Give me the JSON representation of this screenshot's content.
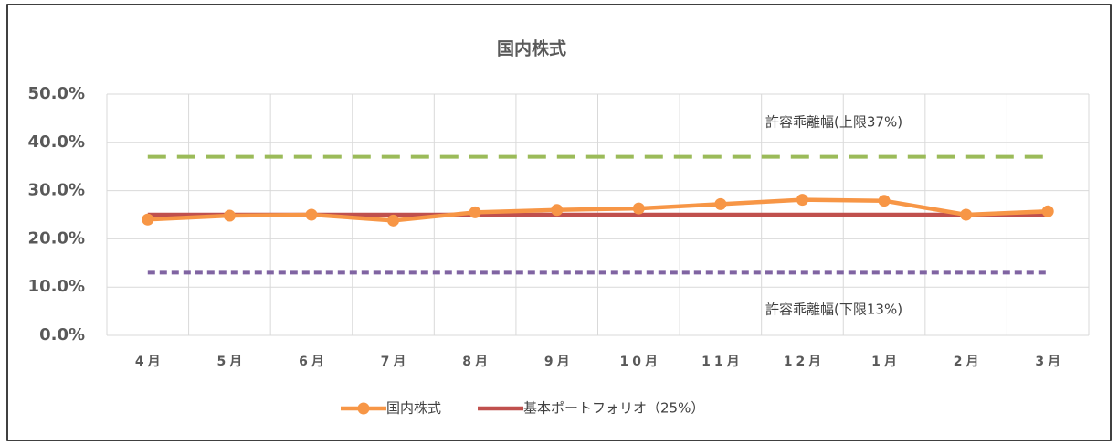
{
  "chart_data": {
    "type": "line",
    "title": "国内株式",
    "categories": [
      "4月",
      "5月",
      "6月",
      "7月",
      "8月",
      "9月",
      "10月",
      "11月",
      "12月",
      "1月",
      "2月",
      "3月"
    ],
    "series": [
      {
        "name": "国内株式",
        "color": "#f79646",
        "marker": true,
        "values": [
          24.0,
          24.8,
          25.0,
          23.8,
          25.5,
          26.0,
          26.3,
          27.2,
          28.1,
          27.9,
          25.0,
          25.7
        ]
      },
      {
        "name": "基本ポートフォリオ（25%）",
        "color": "#c0504d",
        "marker": false,
        "values": [
          25,
          25,
          25,
          25,
          25,
          25,
          25,
          25,
          25,
          25,
          25,
          25
        ]
      }
    ],
    "reference_lines": [
      {
        "value": 37,
        "label": "許容乖離幅(上限37%)",
        "color": "#9bbb59",
        "dash": "dashed"
      },
      {
        "value": 13,
        "label": "許容乖離幅(下限13%)",
        "color": "#8064a2",
        "dash": "dotted"
      }
    ],
    "ylim": [
      0,
      50
    ],
    "yticks": [
      {
        "value": 0,
        "label": "0.0%"
      },
      {
        "value": 10,
        "label": "10.0%"
      },
      {
        "value": 20,
        "label": "20.0%"
      },
      {
        "value": 30,
        "label": "30.0%"
      },
      {
        "value": 40,
        "label": "40.0%"
      },
      {
        "value": 50,
        "label": "50.0%"
      }
    ],
    "grid": true,
    "legend": "bottom"
  }
}
